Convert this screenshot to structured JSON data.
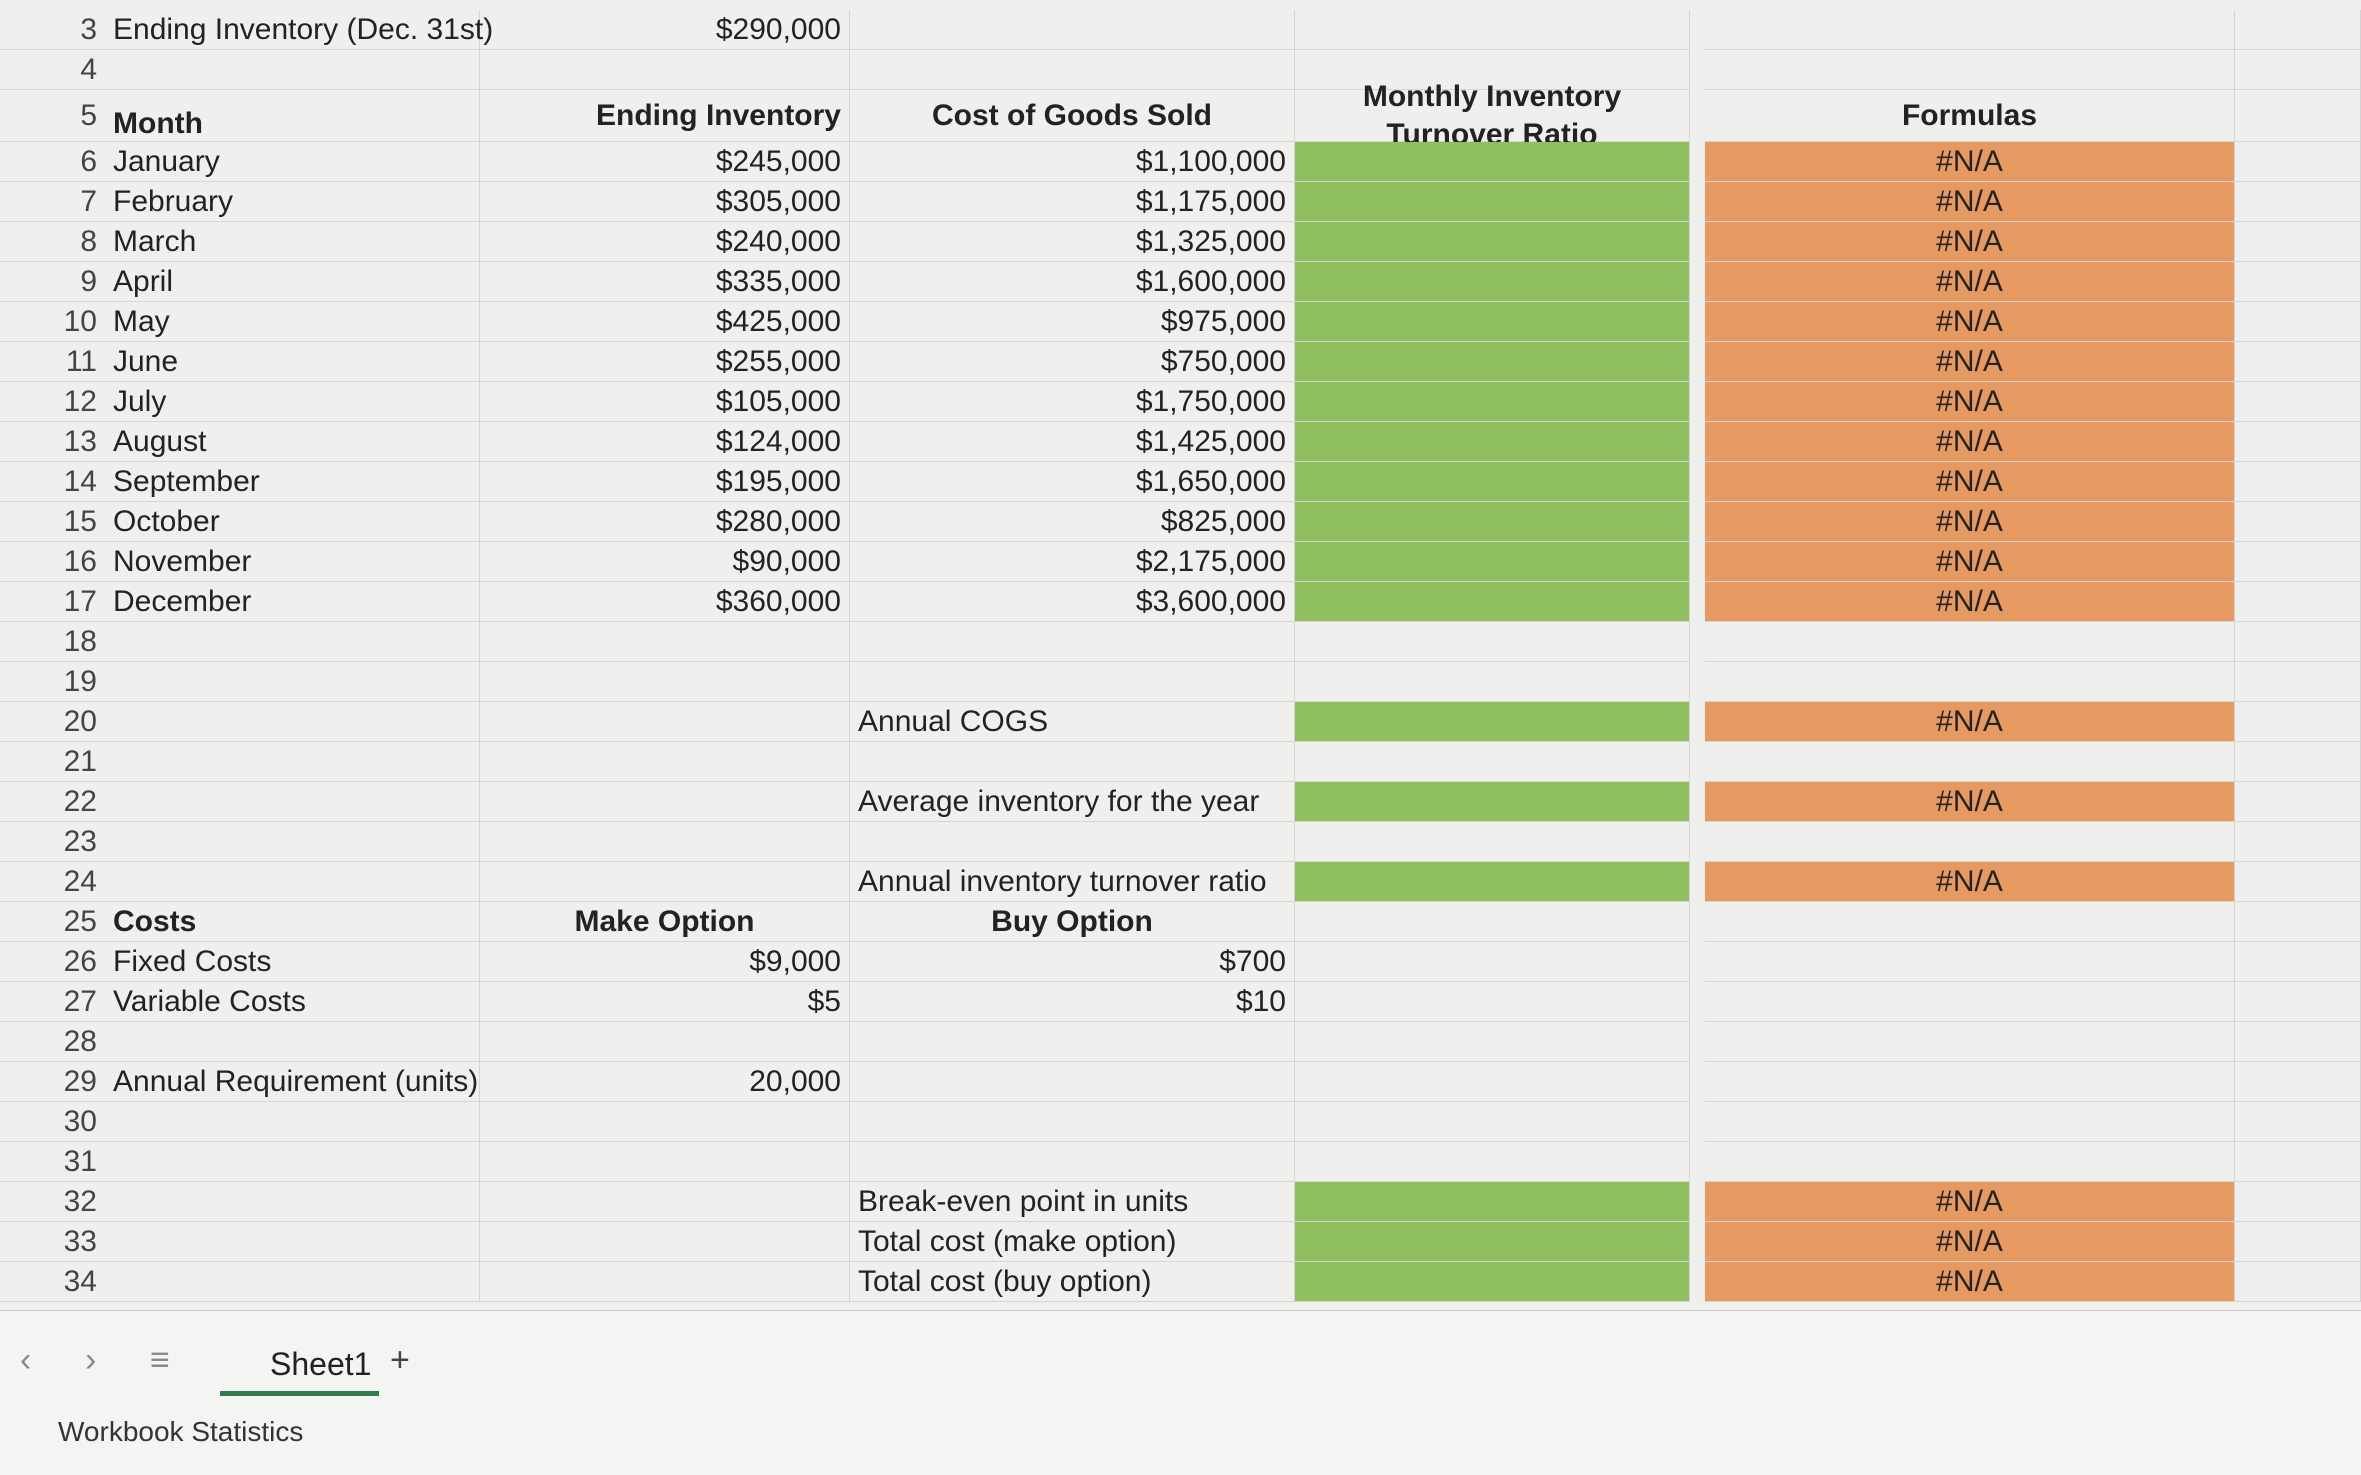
{
  "sheet": {
    "rows": [
      {
        "num": "3",
        "a": "Ending Inventory (Dec. 31st)",
        "b": "$290,000"
      },
      {
        "num": "4"
      },
      {
        "num": "5",
        "a": "Month",
        "b": "Ending Inventory",
        "c": "Cost of Goods Sold",
        "d": "Monthly Inventory Turnover Ratio",
        "e": "Formulas"
      },
      {
        "num": "6",
        "a": "January",
        "b": "$245,000",
        "c": "$1,100,000",
        "e": "#N/A"
      },
      {
        "num": "7",
        "a": "February",
        "b": "$305,000",
        "c": "$1,175,000",
        "e": "#N/A"
      },
      {
        "num": "8",
        "a": "March",
        "b": "$240,000",
        "c": "$1,325,000",
        "e": "#N/A"
      },
      {
        "num": "9",
        "a": "April",
        "b": "$335,000",
        "c": "$1,600,000",
        "e": "#N/A"
      },
      {
        "num": "10",
        "a": "May",
        "b": "$425,000",
        "c": "$975,000",
        "e": "#N/A"
      },
      {
        "num": "11",
        "a": "June",
        "b": "$255,000",
        "c": "$750,000",
        "e": "#N/A"
      },
      {
        "num": "12",
        "a": "July",
        "b": "$105,000",
        "c": "$1,750,000",
        "e": "#N/A"
      },
      {
        "num": "13",
        "a": "August",
        "b": "$124,000",
        "c": "$1,425,000",
        "e": "#N/A"
      },
      {
        "num": "14",
        "a": "September",
        "b": "$195,000",
        "c": "$1,650,000",
        "e": "#N/A"
      },
      {
        "num": "15",
        "a": "October",
        "b": "$280,000",
        "c": "$825,000",
        "e": "#N/A"
      },
      {
        "num": "16",
        "a": "November",
        "b": "$90,000",
        "c": "$2,175,000",
        "e": "#N/A"
      },
      {
        "num": "17",
        "a": "December",
        "b": "$360,000",
        "c": "$3,600,000",
        "e": "#N/A"
      },
      {
        "num": "18"
      },
      {
        "num": "19"
      },
      {
        "num": "20",
        "c": "Annual COGS",
        "e": "#N/A"
      },
      {
        "num": "21"
      },
      {
        "num": "22",
        "c": "Average inventory for the year",
        "e": "#N/A"
      },
      {
        "num": "23"
      },
      {
        "num": "24",
        "c": "Annual inventory turnover ratio",
        "e": "#N/A"
      },
      {
        "num": "25",
        "a": "Costs",
        "b": "Make Option",
        "c": "Buy Option"
      },
      {
        "num": "26",
        "a": "Fixed Costs",
        "b": "$9,000",
        "c": "$700"
      },
      {
        "num": "27",
        "a": "Variable Costs",
        "b": "$5",
        "c": "$10"
      },
      {
        "num": "28"
      },
      {
        "num": "29",
        "a": "Annual Requirement (units)",
        "b": "20,000"
      },
      {
        "num": "30"
      },
      {
        "num": "31"
      },
      {
        "num": "32",
        "c": "Break-even point in units",
        "e": "#N/A"
      },
      {
        "num": "33",
        "c": "Total cost (make option)",
        "e": "#N/A"
      },
      {
        "num": "34",
        "c": "Total cost (buy option)",
        "e": "#N/A"
      }
    ],
    "tab": "Sheet1",
    "status": "Workbook Statistics"
  }
}
